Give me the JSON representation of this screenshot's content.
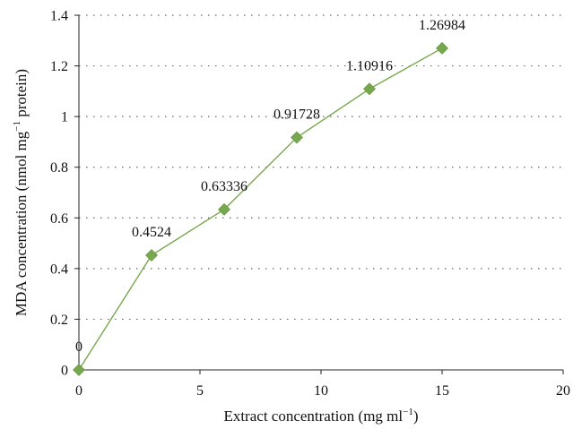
{
  "chart_data": {
    "type": "line",
    "title": "",
    "xlabel": "Extract concentration (mg ml",
    "xlabel_sup": "−1",
    "xlabel_suffix": ")",
    "ylabel": "MDA concentration (nmol mg",
    "ylabel_sup": "−1",
    "ylabel_suffix": " protein)",
    "xlim": [
      0,
      20
    ],
    "ylim": [
      0,
      1.4
    ],
    "xticks": [
      0,
      5,
      10,
      15,
      20
    ],
    "yticks": [
      0,
      0.2,
      0.4,
      0.6,
      0.8,
      1,
      1.2,
      1.4
    ],
    "grid": "horizontal dotted",
    "legend": "none",
    "color": "#77a84d",
    "marker": "diamond",
    "series": [
      {
        "x": [
          0,
          3,
          6,
          9,
          12,
          15
        ],
        "y": [
          0,
          0.4524,
          0.63336,
          0.91728,
          1.10916,
          1.26984
        ],
        "labels": [
          "0",
          "0.4524",
          "0.63336",
          "0.91728",
          "1.10916",
          "1.26984"
        ]
      }
    ]
  }
}
